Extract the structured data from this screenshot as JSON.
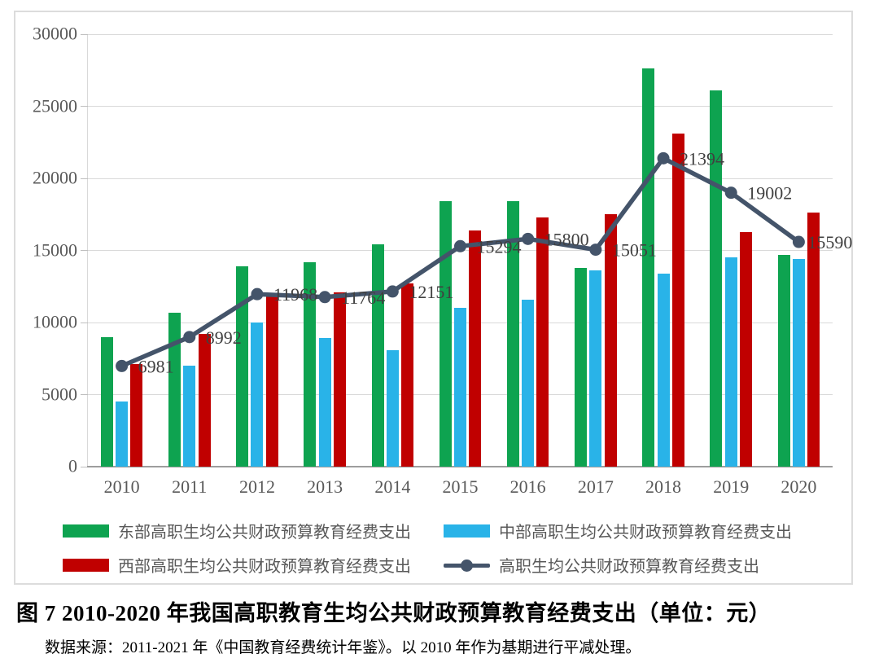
{
  "figure": {
    "caption": "图 7  2010-2020 年我国高职教育生均公共财政预算教育经费支出（单位：元）",
    "source_note": "数据来源：2011-2021 年《中国教育经费统计年鉴》。以 2010 年作为基期进行平减处理。"
  },
  "colors": {
    "east": "#0ea350",
    "central": "#29b3e8",
    "west": "#c00000",
    "overall_line": "#44546a",
    "grid": "#d9d9d9",
    "axis_text": "#595959",
    "data_label": "#404040"
  },
  "chart_data": {
    "type": "bar",
    "subtype": "grouped-bars-with-line-overlay",
    "categories": [
      "2010",
      "2011",
      "2012",
      "2013",
      "2014",
      "2015",
      "2016",
      "2017",
      "2018",
      "2019",
      "2020"
    ],
    "series": [
      {
        "name": "东部高职生均公共财政预算教育经费支出",
        "kind": "bar",
        "color_key": "east",
        "values": [
          9000,
          10700,
          13900,
          14200,
          15400,
          18400,
          18400,
          13800,
          27600,
          26100,
          14700
        ]
      },
      {
        "name": "中部高职生均公共财政预算教育经费支出",
        "kind": "bar",
        "color_key": "central",
        "values": [
          4500,
          7000,
          10000,
          8900,
          8100,
          11000,
          11600,
          13600,
          13400,
          14500,
          14400
        ]
      },
      {
        "name": "西部高职生均公共财政预算教育经费支出",
        "kind": "bar",
        "color_key": "west",
        "values": [
          7100,
          9200,
          11800,
          12100,
          12700,
          16400,
          17300,
          17500,
          23100,
          16300,
          17600
        ]
      },
      {
        "name": "高职生均公共财政预算教育经费支出",
        "kind": "line",
        "color_key": "overall_line",
        "labeled": true,
        "values": [
          6981,
          8992,
          11968,
          11764,
          12151,
          15294,
          15800,
          15051,
          21394,
          19002,
          15590
        ]
      }
    ],
    "ylim": [
      0,
      30000
    ],
    "ytick_interval": 5000,
    "yticks": [
      "0",
      "5000",
      "10000",
      "15000",
      "20000",
      "25000",
      "30000"
    ],
    "xlabel": "",
    "ylabel": "",
    "grid": "horizontal",
    "legend_position": "bottom"
  }
}
